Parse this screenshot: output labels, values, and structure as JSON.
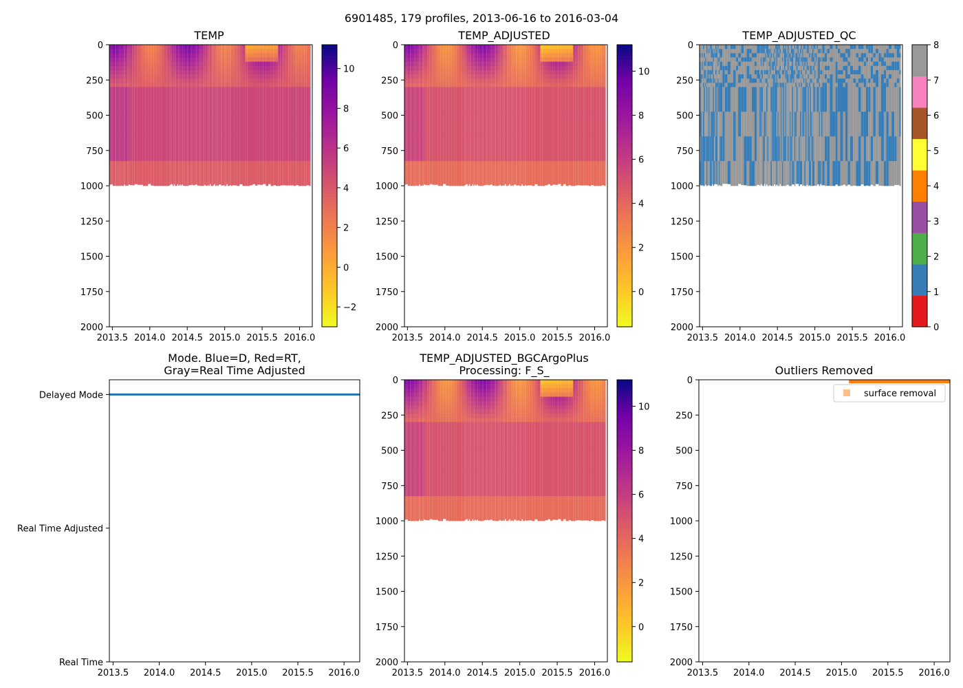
{
  "suptitle": "6901485, 179 profiles, 2013-06-16 to 2016-03-04",
  "colors": {
    "mode_line": "#1f77b4",
    "outlier": "#ff7f0e",
    "base_temp": "#d9586a"
  },
  "chart_data": [
    {
      "id": "temp",
      "type": "heatmap",
      "title": "TEMP",
      "colormap": "plasma_r",
      "x_ticks": [
        "2013.5",
        "2014.0",
        "2014.5",
        "2015.0",
        "2015.5",
        "2016.0"
      ],
      "x_tick_values": [
        2013.5,
        2014.0,
        2014.5,
        2015.0,
        2015.5,
        2016.0
      ],
      "xlim": [
        2013.46,
        2016.17
      ],
      "y_ticks": [
        "0",
        "250",
        "500",
        "750",
        "1000",
        "1250",
        "1500",
        "1750",
        "2000"
      ],
      "y_tick_values": [
        0,
        250,
        500,
        750,
        1000,
        1250,
        1500,
        1750,
        2000
      ],
      "ylim": [
        2000,
        0
      ],
      "colorbar": {
        "ticks": [
          "−2",
          "0",
          "2",
          "4",
          "6",
          "8",
          "10"
        ],
        "tick_values": [
          -2,
          0,
          2,
          4,
          6,
          8,
          10
        ],
        "range": [
          -3,
          11.2
        ]
      }
    },
    {
      "id": "temp_adj",
      "type": "heatmap",
      "title": "TEMP_ADJUSTED",
      "colormap": "plasma_r",
      "x_ticks": [
        "2013.5",
        "2014.0",
        "2014.5",
        "2015.0",
        "2015.5",
        "2016.0"
      ],
      "x_tick_values": [
        2013.5,
        2014.0,
        2014.5,
        2015.0,
        2015.5,
        2016.0
      ],
      "xlim": [
        2013.46,
        2016.17
      ],
      "y_ticks": [
        "0",
        "250",
        "500",
        "750",
        "1000",
        "1250",
        "1500",
        "1750",
        "2000"
      ],
      "y_tick_values": [
        0,
        250,
        500,
        750,
        1000,
        1250,
        1500,
        1750,
        2000
      ],
      "ylim": [
        2000,
        0
      ],
      "colorbar": {
        "ticks": [
          "0",
          "2",
          "4",
          "6",
          "8",
          "10"
        ],
        "tick_values": [
          0,
          2,
          4,
          6,
          8,
          10
        ],
        "range": [
          -1.6,
          11.2
        ]
      }
    },
    {
      "id": "temp_qc",
      "type": "heatmap",
      "title": "TEMP_ADJUSTED_QC",
      "colormap": "qc",
      "x_ticks": [
        "2013.5",
        "2014.0",
        "2014.5",
        "2015.0",
        "2015.5",
        "2016.0"
      ],
      "x_tick_values": [
        2013.5,
        2014.0,
        2014.5,
        2015.0,
        2015.5,
        2016.0
      ],
      "xlim": [
        2013.46,
        2016.17
      ],
      "y_ticks": [
        "0",
        "250",
        "500",
        "750",
        "1000",
        "1250",
        "1500",
        "1750",
        "2000"
      ],
      "y_tick_values": [
        0,
        250,
        500,
        750,
        1000,
        1250,
        1500,
        1750,
        2000
      ],
      "ylim": [
        2000,
        0
      ],
      "colorbar": {
        "ticks": [
          "0",
          "1",
          "2",
          "3",
          "4",
          "5",
          "6",
          "7",
          "8"
        ],
        "tick_values": [
          0,
          1,
          2,
          3,
          4,
          5,
          6,
          7,
          8
        ],
        "range": [
          0,
          8
        ],
        "categories": [
          "#e41a1c",
          "#377eb8",
          "#4daf4a",
          "#984ea3",
          "#ff7f00",
          "#ffff33",
          "#a65628",
          "#f781bf",
          "#999999"
        ]
      }
    },
    {
      "id": "mode",
      "type": "line",
      "title_lines": [
        "Mode. Blue=D, Red=RT,",
        "Gray=Real Time Adjusted"
      ],
      "x_ticks": [
        "2013.5",
        "2014.0",
        "2014.5",
        "2015.0",
        "2015.5",
        "2016.0"
      ],
      "x_tick_values": [
        2013.5,
        2014.0,
        2014.5,
        2015.0,
        2015.5,
        2016.0
      ],
      "xlim": [
        2013.46,
        2016.17
      ],
      "y_ticks": [
        "Delayed Mode",
        "Real Time Adjusted",
        "Real Time"
      ],
      "y_tick_values": [
        0,
        1,
        2
      ],
      "ylim": [
        2.0,
        -0.11
      ],
      "series": [
        {
          "name": "Delayed Mode",
          "value": 0,
          "x_range": [
            2013.46,
            2016.17
          ]
        }
      ]
    },
    {
      "id": "temp_bgc",
      "type": "heatmap",
      "title_lines": [
        "TEMP_ADJUSTED_BGCArgoPlus",
        "Processing: F_S_"
      ],
      "colormap": "plasma_r",
      "x_ticks": [
        "2013.5",
        "2014.0",
        "2014.5",
        "2015.0",
        "2015.5",
        "2016.0"
      ],
      "x_tick_values": [
        2013.5,
        2014.0,
        2014.5,
        2015.0,
        2015.5,
        2016.0
      ],
      "xlim": [
        2013.46,
        2016.17
      ],
      "y_ticks": [
        "0",
        "250",
        "500",
        "750",
        "1000",
        "1250",
        "1500",
        "1750",
        "2000"
      ],
      "y_tick_values": [
        0,
        250,
        500,
        750,
        1000,
        1250,
        1500,
        1750,
        2000
      ],
      "ylim": [
        2000,
        0
      ],
      "colorbar": {
        "ticks": [
          "0",
          "2",
          "4",
          "6",
          "8",
          "10"
        ],
        "tick_values": [
          0,
          2,
          4,
          6,
          8,
          10
        ],
        "range": [
          -1.6,
          11.2
        ]
      }
    },
    {
      "id": "outliers",
      "type": "scatter",
      "title": "Outliers Removed",
      "x_ticks": [
        "2013.5",
        "2014.0",
        "2014.5",
        "2015.0",
        "2015.5",
        "2016.0"
      ],
      "x_tick_values": [
        2013.5,
        2014.0,
        2014.5,
        2015.0,
        2015.5,
        2016.0
      ],
      "xlim": [
        2013.46,
        2016.17
      ],
      "y_ticks": [
        "0",
        "250",
        "500",
        "750",
        "1000",
        "1250",
        "1500",
        "1750",
        "2000"
      ],
      "y_tick_values": [
        0,
        250,
        500,
        750,
        1000,
        1250,
        1500,
        1750,
        2000
      ],
      "ylim": [
        2000,
        0
      ],
      "legend": {
        "entries": [
          "surface removal"
        ],
        "placement": "upper-right"
      },
      "series": [
        {
          "name": "surface removal",
          "x_range": [
            2015.08,
            2016.17
          ],
          "depth_range": [
            0,
            20
          ]
        }
      ]
    }
  ]
}
